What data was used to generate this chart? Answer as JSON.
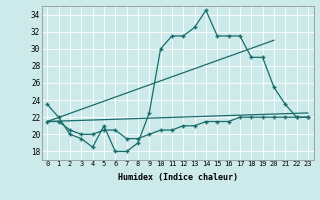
{
  "xlabel": "Humidex (Indice chaleur)",
  "bg_color": "#cceaea",
  "line_color": "#1a6b6b",
  "xlim": [
    -0.5,
    23.5
  ],
  "ylim": [
    17,
    35
  ],
  "yticks": [
    18,
    20,
    22,
    24,
    26,
    28,
    30,
    32,
    34
  ],
  "xticks": [
    0,
    1,
    2,
    3,
    4,
    5,
    6,
    7,
    8,
    9,
    10,
    11,
    12,
    13,
    14,
    15,
    16,
    17,
    18,
    19,
    20,
    21,
    22,
    23
  ],
  "series1_x": [
    0,
    1,
    2,
    3,
    4,
    5,
    6,
    7,
    8,
    9,
    10,
    11,
    12,
    13,
    14,
    15,
    16,
    17,
    18,
    19,
    20,
    21,
    22,
    23
  ],
  "series1_y": [
    23.5,
    22,
    20,
    19.5,
    18.5,
    21,
    18,
    18,
    19,
    22.5,
    30,
    31.5,
    31.5,
    32.5,
    34.5,
    31.5,
    31.5,
    31.5,
    29,
    29,
    25.5,
    23.5,
    22,
    22
  ],
  "series2_x": [
    0,
    1,
    2,
    3,
    4,
    5,
    6,
    7,
    8,
    9,
    10,
    11,
    12,
    13,
    14,
    15,
    16,
    17,
    18,
    19,
    20,
    21,
    22,
    23
  ],
  "series2_y": [
    21.5,
    21.5,
    20.5,
    20,
    20,
    20.5,
    20.5,
    19.5,
    19.5,
    20,
    20.5,
    20.5,
    21,
    21,
    21.5,
    21.5,
    21.5,
    22,
    22,
    22,
    22,
    22,
    22,
    22
  ],
  "line1_x": [
    0,
    23
  ],
  "line1_y": [
    21.5,
    22.5
  ],
  "line2_x": [
    0,
    20
  ],
  "line2_y": [
    21.5,
    31.0
  ]
}
